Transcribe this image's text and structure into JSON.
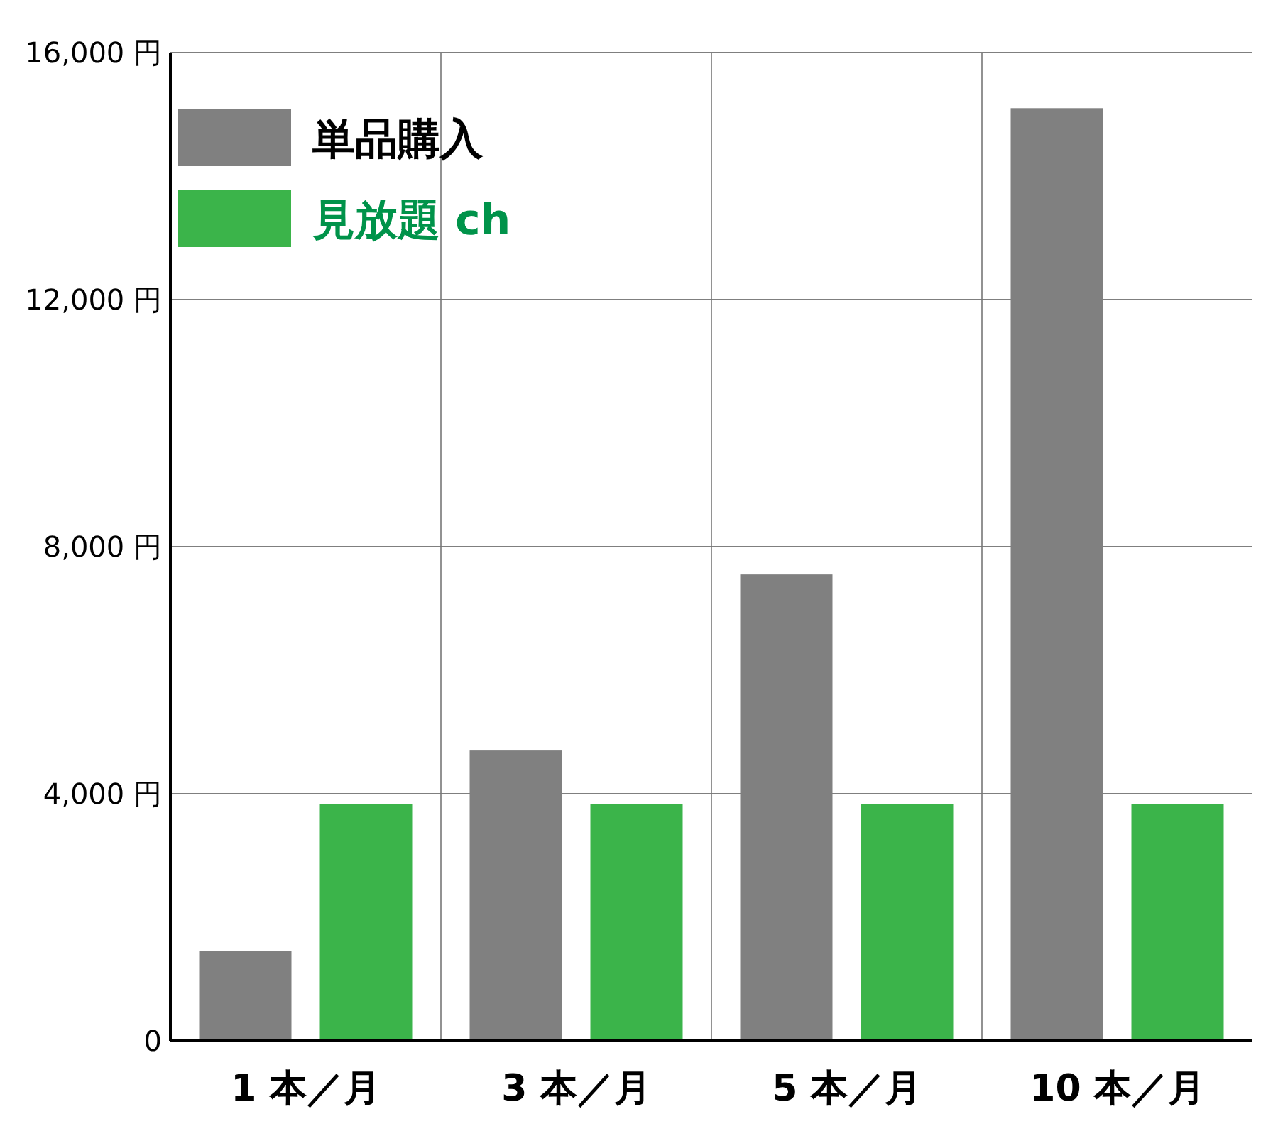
{
  "chart_data": {
    "type": "bar",
    "categories": [
      "1 本／月",
      "3 本／月",
      "5 本／月",
      "10 本／月"
    ],
    "series": [
      {
        "name": "単品購入",
        "color": "#808080",
        "values": [
          1450,
          4700,
          7550,
          15100
        ]
      },
      {
        "name": "見放題 ch",
        "color": "#3bb44a",
        "values": [
          3830,
          3830,
          3830,
          3830
        ]
      }
    ],
    "ylim": [
      0,
      16000
    ],
    "yticks": [
      0,
      {
        "value": 4000,
        "label": "4,000 円"
      },
      {
        "value": 8000,
        "label": "8,000 円"
      },
      {
        "value": 12000,
        "label": "12,000 円"
      },
      {
        "value": 16000,
        "label": "16,000 円"
      }
    ],
    "grid": true,
    "legend": "top left"
  }
}
